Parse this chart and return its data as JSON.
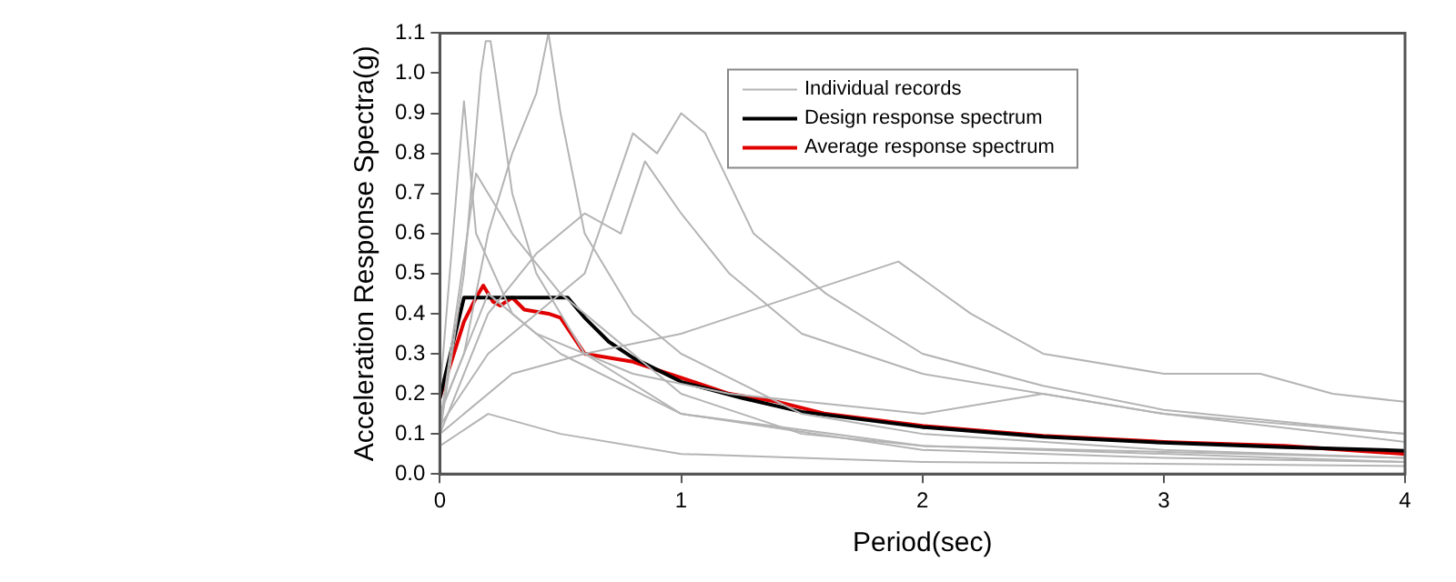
{
  "chart_data": {
    "type": "line",
    "xlabel": "Period(sec)",
    "ylabel": "Acceleration Response Spectra(g)",
    "xlim": [
      0,
      4
    ],
    "ylim": [
      0,
      1.1
    ],
    "xticks": [
      0,
      1,
      2,
      3,
      4
    ],
    "yticks": [
      {
        "value": 0,
        "label": "0.0"
      },
      0.1,
      0.2,
      0.3,
      0.4,
      0.5,
      0.6,
      0.7,
      0.8,
      0.9,
      {
        "value": 1,
        "label": "1.0"
      },
      1.1
    ],
    "grid": false,
    "legend": "top right",
    "marker": "none",
    "series": [
      {
        "name": "Individual records",
        "color": "#b4b4b4",
        "x": [
          0,
          0.1,
          0.2,
          0.3,
          0.4,
          0.45,
          0.5,
          0.6,
          0.8,
          1,
          1.5,
          2,
          3,
          4
        ],
        "values": [
          0.15,
          0.3,
          0.6,
          0.8,
          0.95,
          1.1,
          0.9,
          0.6,
          0.4,
          0.3,
          0.15,
          0.1,
          0.06,
          0.04
        ]
      },
      {
        "color": "#b4b4b4",
        "x": [
          0,
          0.1,
          0.17,
          0.19,
          0.21,
          0.23,
          0.3,
          0.4,
          0.6,
          1,
          2,
          3,
          4
        ],
        "values": [
          0.1,
          0.5,
          1.0,
          1.08,
          1.08,
          1.0,
          0.7,
          0.5,
          0.3,
          0.15,
          0.06,
          0.04,
          0.03
        ]
      },
      {
        "color": "#b4b4b4",
        "x": [
          0,
          0.2,
          0.4,
          0.6,
          0.8,
          0.9,
          1,
          1.1,
          1.3,
          1.6,
          2,
          2.5,
          3,
          4
        ],
        "values": [
          0.12,
          0.3,
          0.4,
          0.5,
          0.85,
          0.8,
          0.9,
          0.85,
          0.6,
          0.45,
          0.3,
          0.22,
          0.16,
          0.1
        ]
      },
      {
        "color": "#b4b4b4",
        "x": [
          0,
          0.2,
          0.4,
          0.6,
          0.75,
          0.85,
          1,
          1.2,
          1.5,
          2,
          3,
          4
        ],
        "values": [
          0.1,
          0.4,
          0.55,
          0.65,
          0.6,
          0.78,
          0.65,
          0.5,
          0.35,
          0.25,
          0.15,
          0.1
        ]
      },
      {
        "color": "#b4b4b4",
        "x": [
          0,
          0.1,
          0.15,
          0.3,
          0.5,
          1,
          2,
          4
        ],
        "values": [
          0.2,
          0.93,
          0.6,
          0.4,
          0.3,
          0.15,
          0.07,
          0.03
        ]
      },
      {
        "color": "#b4b4b4",
        "x": [
          0,
          0.3,
          0.6,
          1,
          1.5,
          1.9,
          2.2,
          2.5,
          3,
          3.4,
          3.7,
          4
        ],
        "values": [
          0.1,
          0.25,
          0.3,
          0.35,
          0.45,
          0.53,
          0.4,
          0.3,
          0.25,
          0.25,
          0.2,
          0.18
        ]
      },
      {
        "color": "#b4b4b4",
        "x": [
          0,
          0.2,
          0.5,
          1,
          2,
          4
        ],
        "values": [
          0.07,
          0.15,
          0.1,
          0.05,
          0.03,
          0.02
        ]
      },
      {
        "color": "#b4b4b4",
        "x": [
          0,
          0.2,
          0.4,
          0.8,
          1.2,
          2,
          2.5,
          3,
          4
        ],
        "values": [
          0.15,
          0.45,
          0.35,
          0.25,
          0.2,
          0.15,
          0.2,
          0.15,
          0.08
        ]
      },
      {
        "color": "#b4b4b4",
        "x": [
          0,
          0.15,
          0.3,
          0.5,
          1,
          1.5,
          2,
          4
        ],
        "values": [
          0.12,
          0.75,
          0.6,
          0.45,
          0.2,
          0.1,
          0.07,
          0.04
        ]
      },
      {
        "name": "Design response spectrum",
        "color": "#000000",
        "x": [
          0,
          0.1,
          0.53,
          0.6,
          0.7,
          0.8,
          1,
          1.25,
          1.5,
          2,
          2.5,
          3,
          3.5,
          4
        ],
        "values": [
          0.19,
          0.44,
          0.44,
          0.39,
          0.33,
          0.29,
          0.23,
          0.19,
          0.155,
          0.117,
          0.093,
          0.078,
          0.067,
          0.058
        ]
      },
      {
        "name": "Average response spectrum",
        "color": "#e00000",
        "x": [
          0,
          0.1,
          0.15,
          0.18,
          0.22,
          0.25,
          0.3,
          0.35,
          0.45,
          0.5,
          0.6,
          0.8,
          1,
          1.2,
          1.4,
          1.6,
          2,
          2.5,
          3,
          3.5,
          4
        ],
        "values": [
          0.19,
          0.38,
          0.44,
          0.47,
          0.43,
          0.42,
          0.44,
          0.41,
          0.4,
          0.39,
          0.3,
          0.28,
          0.24,
          0.2,
          0.18,
          0.15,
          0.12,
          0.095,
          0.08,
          0.07,
          0.05
        ]
      }
    ]
  }
}
